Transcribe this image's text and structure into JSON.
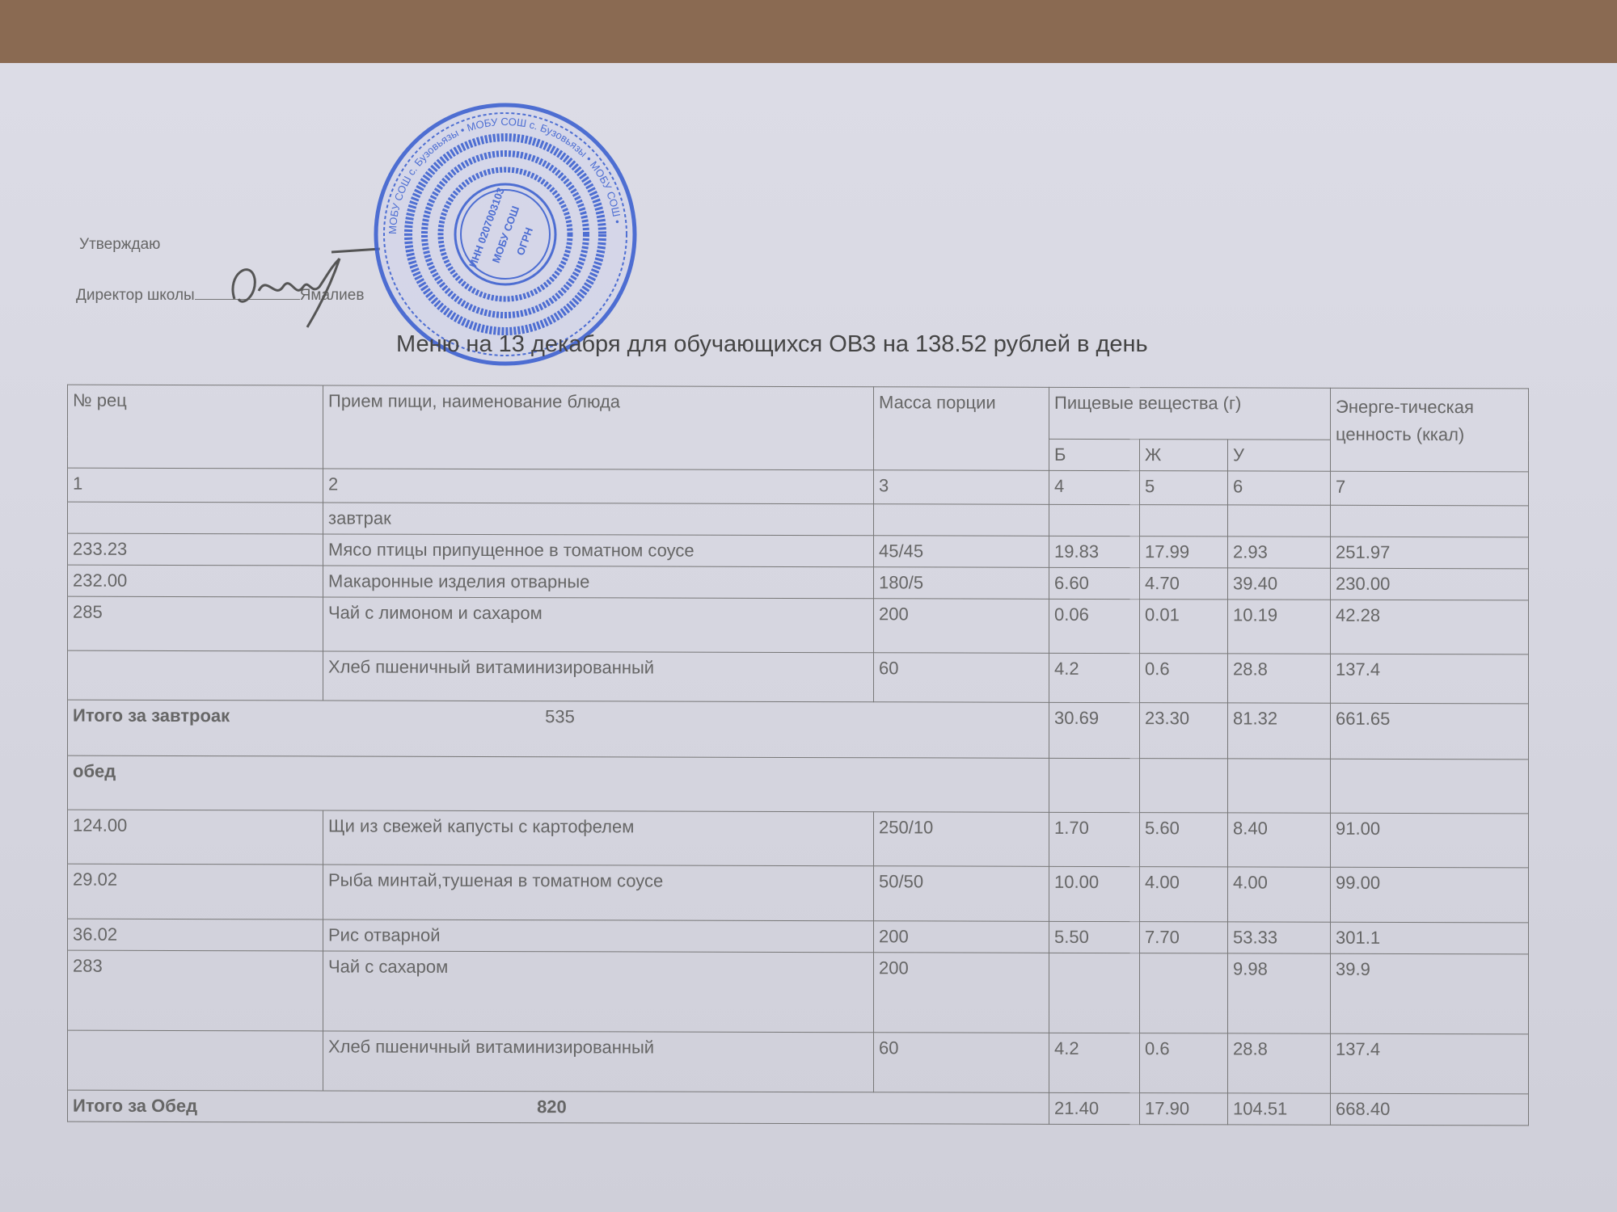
{
  "header": {
    "approve": "Утверждаю",
    "director_label": "Директор школы",
    "director_name": "Ямалиев",
    "title": "Меню на 13 декабря  для обучающихся ОВЗ на 138.52 рублей в день"
  },
  "stamp": {
    "text": "МОБУ СОШ с. Бузовьязы ИНН 0207003103 ОГРН",
    "color": "#3a5fd0"
  },
  "table": {
    "headers": {
      "rec": "№ рец",
      "dish": "Прием пищи, наименование блюда",
      "mass": "Масса порции",
      "nutrients": "Пищевые вещества (г)",
      "energy": "Энерге-тическая ценность (ккал)",
      "b": "Б",
      "zh": "Ж",
      "u": "У"
    },
    "col_numbers": [
      "1",
      "2",
      "3",
      "4",
      "5",
      "6",
      "7"
    ],
    "breakfast_label": "завтрак",
    "breakfast": [
      [
        "233.23",
        "Мясо птицы припущенное в томатном соусе",
        "45/45",
        "19.83",
        "17.99",
        "2.93",
        "251.97"
      ],
      [
        "232.00",
        "Макаронные изделия отварные",
        "180/5",
        "6.60",
        "4.70",
        "39.40",
        "230.00"
      ],
      [
        "285",
        "Чай с лимоном и сахаром",
        "200",
        "0.06",
        "0.01",
        "10.19",
        "42.28"
      ],
      [
        "",
        "Хлеб пшеничный витаминизированный",
        "60",
        "4.2",
        "0.6",
        "28.8",
        "137.4"
      ]
    ],
    "breakfast_total": {
      "label": "Итого за завтроак",
      "mass": "535",
      "b": "30.69",
      "zh": "23.30",
      "u": "81.32",
      "e": "661.65"
    },
    "lunch_label": "обед",
    "lunch": [
      [
        "124.00",
        "Щи из свежей капусты с картофелем",
        "250/10",
        "1.70",
        "5.60",
        "8.40",
        "91.00"
      ],
      [
        "29.02",
        "Рыба минтай,тушеная в томатном соусе",
        "50/50",
        "10.00",
        "4.00",
        "4.00",
        "99.00"
      ],
      [
        "36.02",
        "Рис отварной",
        "200",
        "5.50",
        "7.70",
        "53.33",
        "301.1"
      ],
      [
        "283",
        "Чай с сахаром",
        "200",
        "",
        "",
        "9.98",
        "39.9"
      ],
      [
        "",
        "Хлеб пшеничный витаминизированный",
        "60",
        "4.2",
        "0.6",
        "28.8",
        "137.4"
      ]
    ],
    "lunch_total": {
      "label": "Итого за Обед",
      "mass": "820",
      "b": "21.40",
      "zh": "17.90",
      "u": "104.51",
      "e": "668.40"
    }
  }
}
